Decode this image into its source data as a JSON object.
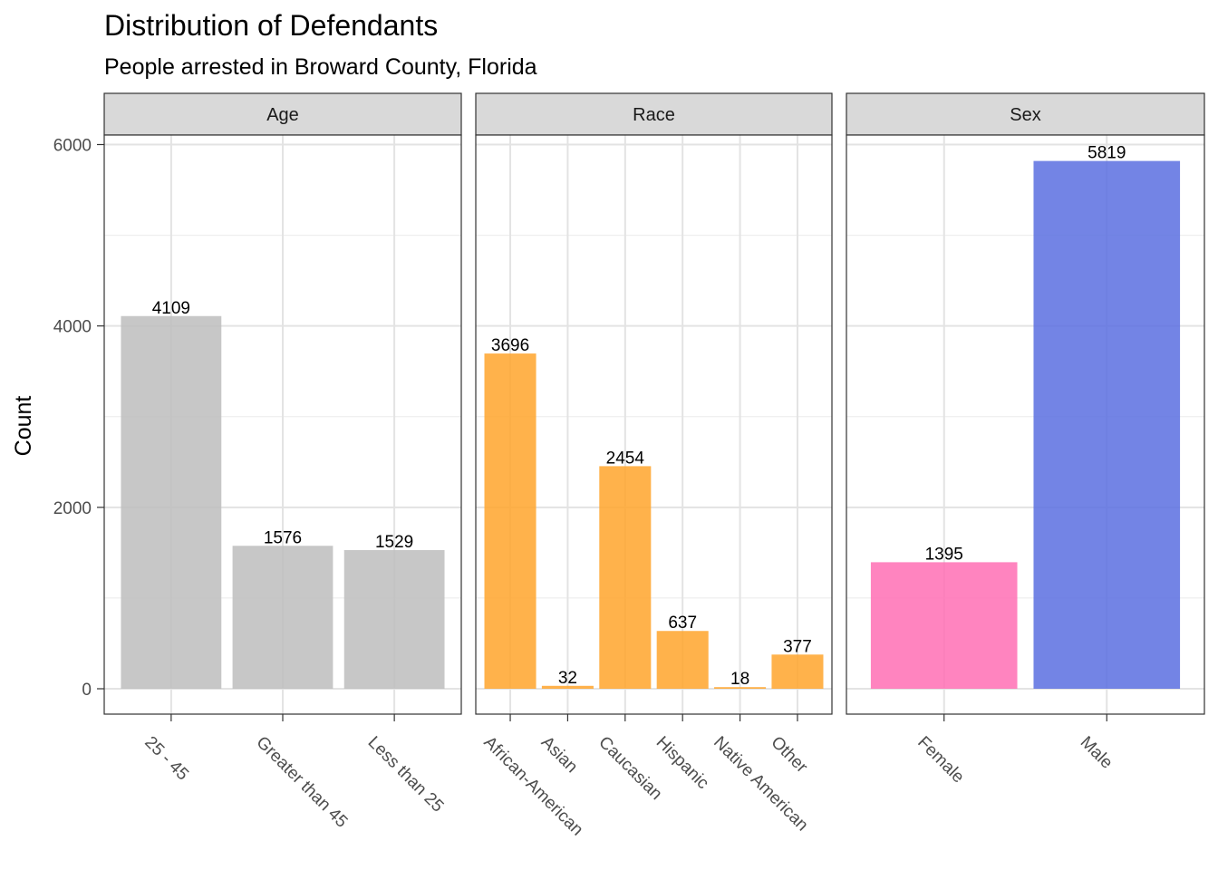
{
  "chart_data": {
    "type": "bar",
    "title": "Distribution of Defendants",
    "subtitle": "People arrested in Broward County, Florida",
    "xlabel": "",
    "ylabel": "Count",
    "ylim": [
      -300,
      6100
    ],
    "yticks": [
      0,
      2000,
      4000,
      6000
    ],
    "grid": true,
    "facets": [
      {
        "name": "Age",
        "color": "#bdbdbd",
        "categories": [
          "25 - 45",
          "Greater than 45",
          "Less than 25"
        ],
        "values": [
          4109,
          1576,
          1529
        ]
      },
      {
        "name": "Race",
        "color": "#ffa52c",
        "categories": [
          "African-American",
          "Asian",
          "Caucasian",
          "Hispanic",
          "Native American",
          "Other"
        ],
        "values": [
          3696,
          32,
          2454,
          637,
          18,
          377
        ]
      },
      {
        "name": "Sex",
        "categories": [
          "Female",
          "Male"
        ],
        "values": [
          1395,
          5819
        ],
        "colors": [
          "#ff6eb4",
          "#5b6fe0"
        ]
      }
    ]
  }
}
